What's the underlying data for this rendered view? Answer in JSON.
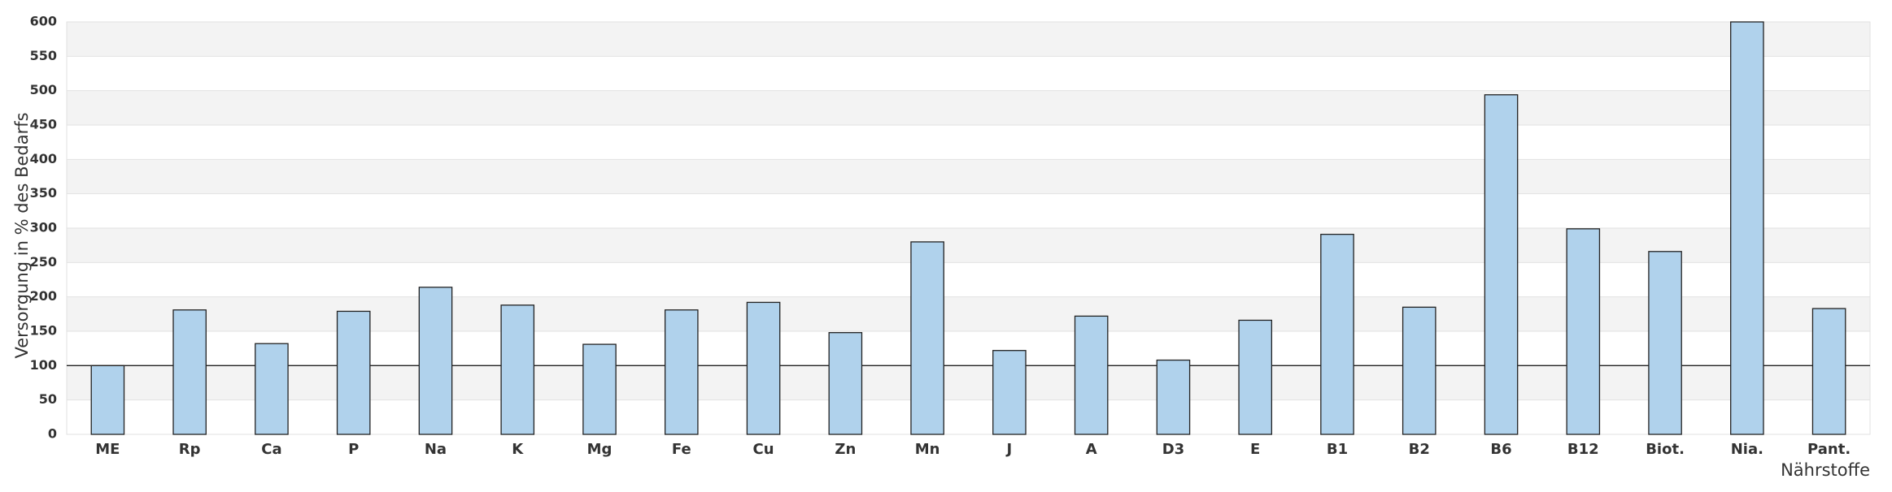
{
  "chart_data": {
    "type": "bar",
    "y_label": "Versorgung in % des Bedarfs",
    "x_label": "Nährstoffe",
    "categories": [
      "ME",
      "Rp",
      "Ca",
      "P",
      "Na",
      "K",
      "Mg",
      "Fe",
      "Cu",
      "Zn",
      "Mn",
      "J",
      "A",
      "D3",
      "E",
      "B1",
      "B2",
      "B6",
      "B12",
      "Biot.",
      "Nia.",
      "Pant."
    ],
    "values": [
      100,
      181,
      132,
      179,
      214,
      188,
      131,
      181,
      192,
      148,
      280,
      122,
      172,
      108,
      166,
      291,
      185,
      494,
      299,
      266,
      600,
      183
    ],
    "color": "#b0d2ec",
    "reference_line": 100,
    "ylim": [
      0,
      600
    ],
    "yticks": [
      0,
      50,
      100,
      150,
      200,
      250,
      300,
      350,
      400,
      450,
      500,
      550,
      600
    ],
    "grid": true
  }
}
